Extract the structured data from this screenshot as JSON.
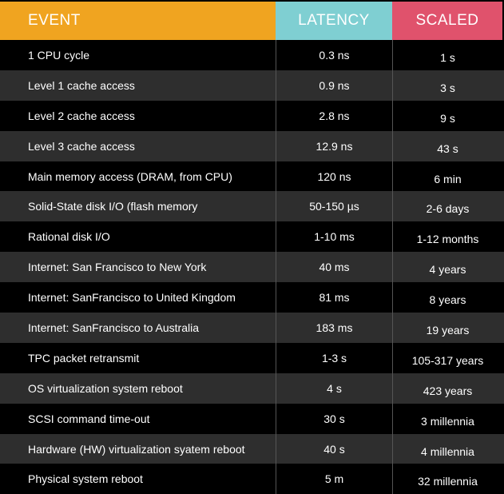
{
  "header": {
    "event": "EVENT",
    "latency": "LATENCY",
    "scaled": "SCALED"
  },
  "colors": {
    "event_header": "#f0a420",
    "latency_header": "#7fcfd2",
    "scaled_header": "#e0526c",
    "row_dark": "#000000",
    "row_alt": "#2e2e2e"
  },
  "rows": [
    {
      "event": "1 CPU cycle",
      "latency": "0.3 ns",
      "scaled": "1 s"
    },
    {
      "event": "Level 1 cache access",
      "latency": "0.9 ns",
      "scaled": "3 s"
    },
    {
      "event": "Level 2 cache access",
      "latency": "2.8 ns",
      "scaled": "9 s"
    },
    {
      "event": "Level 3 cache access",
      "latency": "12.9 ns",
      "scaled": "43 s"
    },
    {
      "event": "Main memory access (DRAM, from CPU)",
      "latency": "120 ns",
      "scaled": "6 min"
    },
    {
      "event": "Solid-State disk I/O (flash memory",
      "latency": "50-150 µs",
      "scaled": "2-6 days"
    },
    {
      "event": "Rational disk I/O",
      "latency": "1-10 ms",
      "scaled": "1-12 months"
    },
    {
      "event": "Internet: San Francisco to New York",
      "latency": "40 ms",
      "scaled": "4 years"
    },
    {
      "event": "Internet: SanFrancisco to United Kingdom",
      "latency": "81 ms",
      "scaled": "8 years"
    },
    {
      "event": "Internet: SanFrancisco to Australia",
      "latency": "183 ms",
      "scaled": "19 years"
    },
    {
      "event": "TPC packet retransmit",
      "latency": "1-3 s",
      "scaled": "105-317 years"
    },
    {
      "event": "OS virtualization system reboot",
      "latency": "4 s",
      "scaled": "423 years"
    },
    {
      "event": "SCSI command time-out",
      "latency": "30 s",
      "scaled": "3 millennia"
    },
    {
      "event": "Hardware (HW) virtualization syatem reboot",
      "latency": "40 s",
      "scaled": "4 millennia"
    },
    {
      "event": "Physical system reboot",
      "latency": "5 m",
      "scaled": "32 millennia"
    }
  ]
}
